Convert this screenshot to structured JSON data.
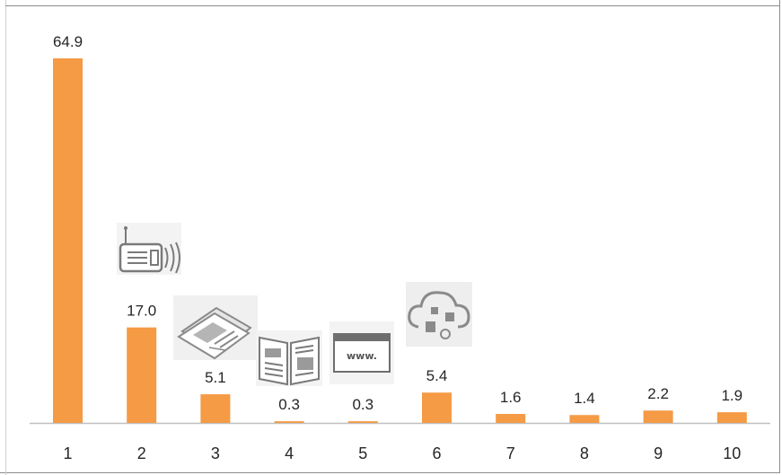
{
  "chart_data": {
    "type": "bar",
    "categories": [
      "1",
      "2",
      "3",
      "4",
      "5",
      "6",
      "7",
      "8",
      "9",
      "10"
    ],
    "values": [
      64.9,
      17.0,
      5.1,
      0.3,
      0.3,
      5.4,
      1.6,
      1.4,
      2.2,
      1.9
    ],
    "value_labels": [
      "64.9",
      "17.0",
      "5.1",
      "0.3",
      "0.3",
      "5.4",
      "1.6",
      "1.4",
      "2.2",
      "1.9"
    ],
    "bar_color": "#f59a45",
    "grid": false,
    "legend": "none",
    "icons": [
      {
        "category": "2",
        "name": "radio-icon"
      },
      {
        "category": "3",
        "name": "newspaper-icon"
      },
      {
        "category": "4",
        "name": "magazine-icon"
      },
      {
        "category": "5",
        "name": "website-icon"
      },
      {
        "category": "6",
        "name": "social-media-cloud-icon"
      }
    ],
    "icon_texts": {
      "website": "www."
    }
  }
}
